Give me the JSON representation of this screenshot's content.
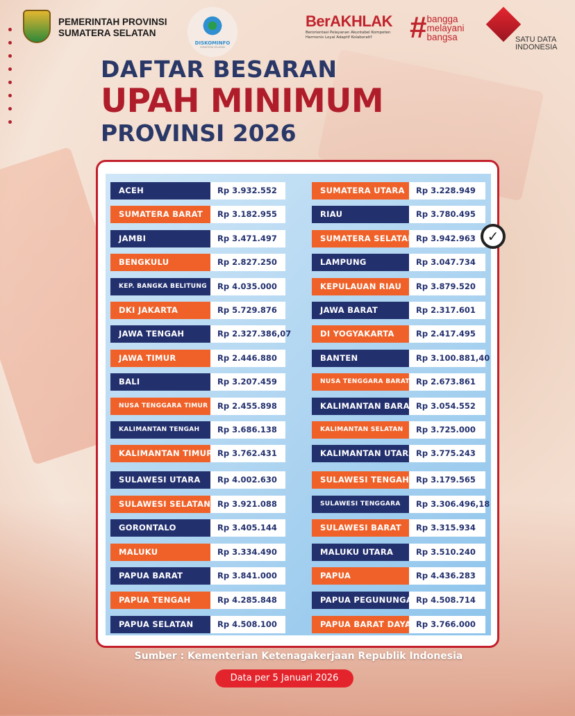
{
  "header": {
    "org_line1": "PEMERINTAH PROVINSI",
    "org_line2": "SUMATERA SELATAN",
    "diskominfo": "DISKOMINFO",
    "diskominfo_sub": "SUMATERA SELATAN",
    "berakhlak": "BerAKHLAK",
    "berakhlak_sub": "Berorientasi Pelayanan Akuntabel Kompeten Harmonis Loyal Adaptif Kolaboratif",
    "bangga": [
      "bangga",
      "melayani",
      "bangsa"
    ],
    "satu_data": "SATU DATA INDONESIA"
  },
  "title": {
    "line1": "DAFTAR BESARAN",
    "line2": "UPAH MINIMUM",
    "line3": "PROVINSI 2026"
  },
  "colors": {
    "navy": "#23306e",
    "orange": "#ef6128",
    "accent_red": "#b01d2a"
  },
  "table": {
    "left": [
      {
        "province": "ACEH",
        "wage": "Rp 3.932.552",
        "color": "navy"
      },
      {
        "province": "SUMATERA BARAT",
        "wage": "Rp 3.182.955",
        "color": "orange"
      },
      {
        "province": "JAMBI",
        "wage": "Rp 3.471.497",
        "color": "navy"
      },
      {
        "province": "BENGKULU",
        "wage": "Rp 2.827.250",
        "color": "orange"
      },
      {
        "province": "KEP. BANGKA BELITUNG",
        "wage": "Rp 4.035.000",
        "color": "navy"
      },
      {
        "province": "DKI JAKARTA",
        "wage": "Rp 5.729.876",
        "color": "orange"
      },
      {
        "province": "JAWA TENGAH",
        "wage": "Rp 2.327.386,07",
        "color": "navy"
      },
      {
        "province": "JAWA TIMUR",
        "wage": "Rp 2.446.880",
        "color": "orange"
      },
      {
        "province": "BALI",
        "wage": "Rp 3.207.459",
        "color": "navy"
      },
      {
        "province": "NUSA TENGGARA TIMUR",
        "wage": "Rp 2.455.898",
        "color": "orange"
      },
      {
        "province": "KALIMANTAN TENGAH",
        "wage": "Rp 3.686.138",
        "color": "navy"
      },
      {
        "province": "KALIMANTAN TIMUR",
        "wage": "Rp 3.762.431",
        "color": "orange"
      },
      {
        "province": "SULAWESI UTARA",
        "wage": "Rp 4.002.630",
        "color": "navy"
      },
      {
        "province": "SULAWESI SELATAN",
        "wage": "Rp 3.921.088",
        "color": "orange"
      },
      {
        "province": "GORONTALO",
        "wage": "Rp 3.405.144",
        "color": "navy"
      },
      {
        "province": "MALUKU",
        "wage": "Rp 3.334.490",
        "color": "orange"
      },
      {
        "province": "PAPUA BARAT",
        "wage": "Rp 3.841.000",
        "color": "navy"
      },
      {
        "province": "PAPUA TENGAH",
        "wage": "Rp 4.285.848",
        "color": "orange"
      },
      {
        "province": "PAPUA SELATAN",
        "wage": "Rp 4.508.100",
        "color": "navy"
      }
    ],
    "right": [
      {
        "province": "SUMATERA UTARA",
        "wage": "Rp 3.228.949",
        "color": "orange"
      },
      {
        "province": "RIAU",
        "wage": "Rp 3.780.495",
        "color": "navy"
      },
      {
        "province": "SUMATERA SELATAN",
        "wage": "Rp 3.942.963",
        "color": "orange",
        "checked": true
      },
      {
        "province": "LAMPUNG",
        "wage": "Rp 3.047.734",
        "color": "navy"
      },
      {
        "province": "KEPULAUAN RIAU",
        "wage": "Rp 3.879.520",
        "color": "orange"
      },
      {
        "province": "JAWA BARAT",
        "wage": "Rp 2.317.601",
        "color": "navy"
      },
      {
        "province": "DI YOGYAKARTA",
        "wage": "Rp 2.417.495",
        "color": "orange"
      },
      {
        "province": "BANTEN",
        "wage": "Rp 3.100.881,40",
        "color": "navy"
      },
      {
        "province": "NUSA TENGGARA BARAT",
        "wage": "Rp 2.673.861",
        "color": "orange"
      },
      {
        "province": "KALIMANTAN BARAT",
        "wage": "Rp 3.054.552",
        "color": "navy"
      },
      {
        "province": "KALIMANTAN SELATAN",
        "wage": "Rp 3.725.000",
        "color": "orange"
      },
      {
        "province": "KALIMANTAN UTARA",
        "wage": "Rp 3.775.243",
        "color": "navy"
      },
      {
        "province": "SULAWESI TENGAH",
        "wage": "Rp 3.179.565",
        "color": "orange"
      },
      {
        "province": "SULAWESI TENGGARA",
        "wage": "Rp 3.306.496,18",
        "color": "navy"
      },
      {
        "province": "SULAWESI BARAT",
        "wage": "Rp 3.315.934",
        "color": "orange"
      },
      {
        "province": "MALUKU UTARA",
        "wage": "Rp 3.510.240",
        "color": "navy"
      },
      {
        "province": "PAPUA",
        "wage": "Rp 4.436.283",
        "color": "orange"
      },
      {
        "province": "PAPUA PEGUNUNGAN",
        "wage": "Rp 4.508.714",
        "color": "navy"
      },
      {
        "province": "PAPUA BARAT DAYA",
        "wage": "Rp 3.766.000",
        "color": "orange"
      }
    ]
  },
  "footer": {
    "source": "Sumber : Kementerian Ketenagakerjaan Republik Indonesia",
    "date": "Data per 5 Januari 2026"
  }
}
